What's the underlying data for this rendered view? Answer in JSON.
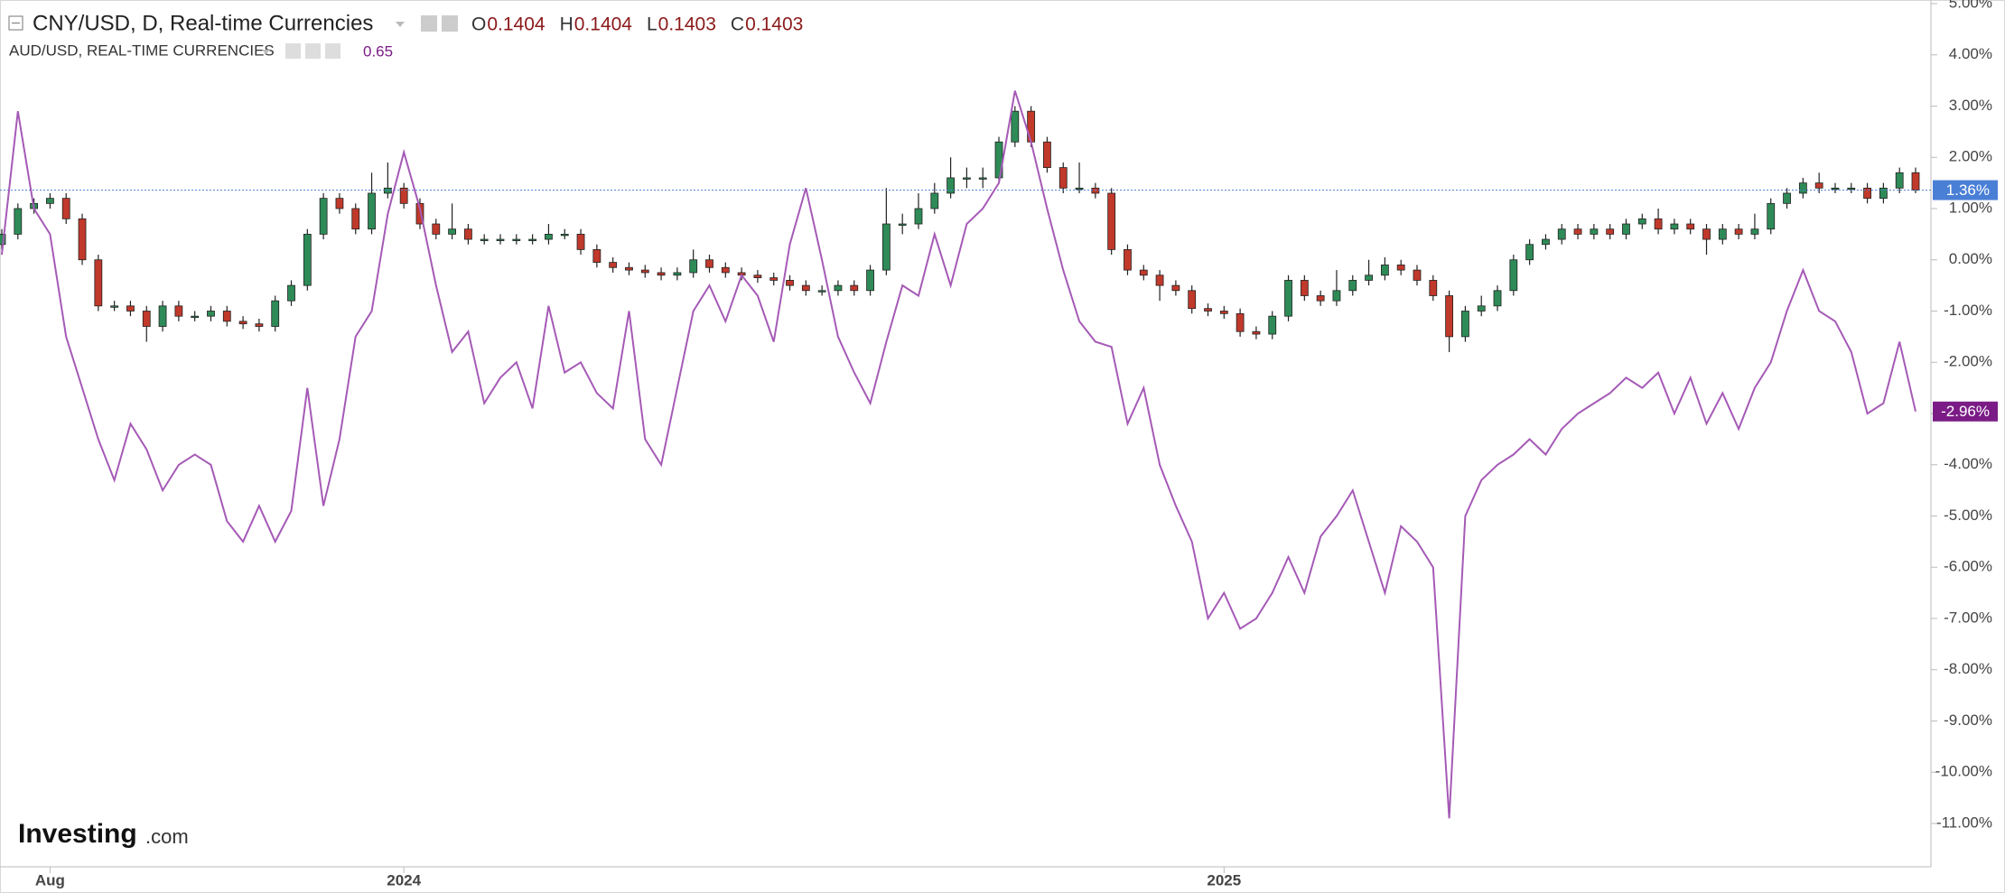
{
  "chart_data": {
    "type": "candlestick",
    "header": {
      "ohlc": [
        {
          "key": "O",
          "value": 0.1404
        },
        {
          "key": "H",
          "value": 0.1404
        },
        {
          "key": "L",
          "value": 0.1403
        },
        {
          "key": "C",
          "value": 0.1403
        }
      ],
      "compare_value": 0.65
    },
    "watermark": [
      "Investing",
      ".com"
    ],
    "ylim": [
      5,
      -11
    ],
    "yticks": [
      {
        "value": 5,
        "label": "5.00%"
      },
      {
        "value": 4,
        "label": "4.00%"
      },
      {
        "value": 3,
        "label": "3.00%"
      },
      {
        "value": 2,
        "label": "2.00%"
      },
      {
        "value": 1,
        "label": "1.00%"
      },
      {
        "value": 0,
        "label": "0.00%"
      },
      {
        "value": -1,
        "label": "-1.00%"
      },
      {
        "value": -2,
        "label": "-2.00%"
      },
      {
        "value": -3,
        "label": "-3.00%"
      },
      {
        "value": -4,
        "label": "-4.00%"
      },
      {
        "value": -5,
        "label": "-5.00%"
      },
      {
        "value": -6,
        "label": "-6.00%"
      },
      {
        "value": -7,
        "label": "-7.00%"
      },
      {
        "value": -8,
        "label": "-8.00%"
      },
      {
        "value": -9,
        "label": "-9.00%"
      },
      {
        "value": -10,
        "label": "-10.00%"
      },
      {
        "value": -11,
        "label": "-11.00%"
      }
    ],
    "categories": [
      null,
      null,
      null,
      "Aug",
      null,
      null,
      null,
      null,
      null,
      null,
      null,
      null,
      null,
      null,
      null,
      null,
      null,
      null,
      null,
      null,
      null,
      null,
      null,
      null,
      null,
      "2024",
      null,
      null,
      null,
      null,
      null,
      null,
      null,
      null,
      null,
      null,
      null,
      null,
      null,
      null,
      null,
      null,
      null,
      null,
      null,
      null,
      null,
      null,
      null,
      null,
      null,
      null,
      null,
      null,
      null,
      null,
      null,
      null,
      null,
      null,
      null,
      null,
      null,
      null,
      null,
      null,
      null,
      null,
      null,
      null,
      null,
      null,
      null,
      null,
      null,
      null,
      "2025",
      null,
      null,
      null,
      null,
      null,
      null,
      null,
      null,
      null,
      null,
      null,
      null,
      null,
      null,
      null,
      null,
      null,
      null,
      null,
      null,
      null,
      null,
      null,
      null,
      null,
      null,
      null,
      null,
      null,
      null,
      null,
      null,
      null,
      null,
      null,
      null,
      null,
      null,
      null,
      null,
      null,
      null,
      null
    ],
    "series": [
      {
        "name": "CNY/USD, D, Real-time Currencies",
        "type": "candlestick",
        "up_color": "#2e8b57",
        "down_color": "#c0392b",
        "last_color": "#4a7fd6",
        "last_label": "1.36%",
        "open": [
          0.3,
          0.5,
          1.0,
          1.1,
          1.2,
          0.8,
          0.0,
          -0.9,
          -0.9,
          -1.0,
          -1.3,
          -0.9,
          -1.1,
          -1.1,
          -1.0,
          -1.2,
          -1.25,
          -1.3,
          -0.8,
          -0.5,
          0.5,
          1.2,
          1.0,
          0.6,
          1.3,
          1.4,
          1.1,
          0.7,
          0.5,
          0.6,
          0.4,
          0.4,
          0.4,
          0.4,
          0.4,
          0.5,
          0.5,
          0.2,
          -0.05,
          -0.15,
          -0.2,
          -0.25,
          -0.3,
          -0.25,
          0.0,
          -0.15,
          -0.25,
          -0.3,
          -0.35,
          -0.4,
          -0.5,
          -0.6,
          -0.6,
          -0.5,
          -0.6,
          -0.2,
          0.7,
          0.7,
          1.0,
          1.3,
          1.6,
          1.6,
          1.6,
          2.3,
          2.9,
          2.3,
          1.8,
          1.4,
          1.4,
          1.3,
          0.2,
          -0.2,
          -0.3,
          -0.5,
          -0.6,
          -0.95,
          -1.0,
          -1.05,
          -1.4,
          -1.45,
          -1.1,
          -0.4,
          -0.7,
          -0.8,
          -0.6,
          -0.4,
          -0.3,
          -0.1,
          -0.2,
          -0.4,
          -0.7,
          -1.5,
          -1.0,
          -0.9,
          -0.6,
          0.0,
          0.3,
          0.4,
          0.6,
          0.5,
          0.6,
          0.5,
          0.7,
          0.8,
          0.6,
          0.7,
          0.6,
          0.4,
          0.6,
          0.5,
          0.6,
          1.1,
          1.3,
          1.5,
          1.4,
          1.4,
          1.4,
          1.2,
          1.4,
          1.7
        ],
        "high": [
          0.6,
          1.1,
          1.2,
          1.3,
          1.3,
          0.9,
          0.1,
          -0.8,
          -0.8,
          -0.9,
          -0.8,
          -0.8,
          -1.0,
          -0.9,
          -0.9,
          -1.1,
          -1.15,
          -0.7,
          -0.4,
          0.6,
          1.3,
          1.3,
          1.1,
          1.7,
          1.9,
          1.5,
          1.2,
          0.8,
          1.1,
          0.7,
          0.5,
          0.5,
          0.5,
          0.5,
          0.7,
          0.6,
          0.6,
          0.3,
          0.05,
          -0.05,
          -0.1,
          -0.15,
          -0.15,
          0.2,
          0.1,
          -0.05,
          -0.15,
          -0.2,
          -0.25,
          -0.3,
          -0.4,
          -0.5,
          -0.4,
          -0.4,
          -0.1,
          1.4,
          0.9,
          1.3,
          1.5,
          2.0,
          1.8,
          1.8,
          2.4,
          3.0,
          3.0,
          2.4,
          1.9,
          1.9,
          1.5,
          1.4,
          0.3,
          -0.1,
          -0.2,
          -0.4,
          -0.5,
          -0.85,
          -0.9,
          -0.95,
          -1.3,
          -1.0,
          -0.3,
          -0.3,
          -0.6,
          -0.2,
          -0.3,
          0.0,
          0.05,
          0.0,
          -0.1,
          -0.3,
          -0.6,
          -0.9,
          -0.7,
          -0.5,
          0.1,
          0.4,
          0.5,
          0.7,
          0.7,
          0.7,
          0.7,
          0.8,
          0.9,
          1.0,
          0.8,
          0.8,
          0.7,
          0.7,
          0.7,
          0.9,
          1.2,
          1.4,
          1.6,
          1.7,
          1.5,
          1.5,
          1.5,
          1.5,
          1.8,
          1.8
        ],
        "low": [
          0.2,
          0.4,
          0.9,
          1.0,
          0.7,
          -0.1,
          -1.0,
          -1.0,
          -1.1,
          -1.6,
          -1.4,
          -1.2,
          -1.2,
          -1.2,
          -1.3,
          -1.35,
          -1.4,
          -1.4,
          -0.9,
          -0.6,
          0.4,
          0.9,
          0.5,
          0.5,
          1.2,
          1.0,
          0.6,
          0.4,
          0.4,
          0.3,
          0.3,
          0.3,
          0.3,
          0.3,
          0.3,
          0.4,
          0.1,
          -0.15,
          -0.25,
          -0.3,
          -0.35,
          -0.4,
          -0.4,
          -0.35,
          -0.25,
          -0.35,
          -0.4,
          -0.45,
          -0.5,
          -0.6,
          -0.7,
          -0.7,
          -0.7,
          -0.7,
          -0.7,
          -0.3,
          0.5,
          0.6,
          0.9,
          1.2,
          1.4,
          1.4,
          1.5,
          2.2,
          2.2,
          1.7,
          1.3,
          1.3,
          1.2,
          0.1,
          -0.3,
          -0.4,
          -0.8,
          -0.7,
          -1.05,
          -1.1,
          -1.15,
          -1.5,
          -1.55,
          -1.55,
          -1.2,
          -0.8,
          -0.9,
          -0.9,
          -0.7,
          -0.5,
          -0.4,
          -0.3,
          -0.5,
          -0.8,
          -1.8,
          -1.6,
          -1.1,
          -1.0,
          -0.7,
          -0.1,
          0.2,
          0.3,
          0.4,
          0.4,
          0.4,
          0.4,
          0.6,
          0.5,
          0.5,
          0.5,
          0.1,
          0.3,
          0.4,
          0.4,
          0.5,
          1.0,
          1.2,
          1.3,
          1.3,
          1.3,
          1.1,
          1.1,
          1.3,
          1.3
        ],
        "close": [
          0.5,
          1.0,
          1.1,
          1.2,
          0.8,
          0.0,
          -0.9,
          -0.9,
          -1.0,
          -1.3,
          -0.9,
          -1.1,
          -1.1,
          -1.0,
          -1.2,
          -1.25,
          -1.3,
          -0.8,
          -0.5,
          0.5,
          1.2,
          1.0,
          0.6,
          1.3,
          1.4,
          1.1,
          0.7,
          0.5,
          0.6,
          0.4,
          0.4,
          0.4,
          0.4,
          0.4,
          0.5,
          0.5,
          0.2,
          -0.05,
          -0.15,
          -0.2,
          -0.25,
          -0.3,
          -0.25,
          0.0,
          -0.15,
          -0.25,
          -0.3,
          -0.35,
          -0.4,
          -0.5,
          -0.6,
          -0.6,
          -0.5,
          -0.6,
          -0.2,
          0.7,
          0.7,
          1.0,
          1.3,
          1.6,
          1.6,
          1.6,
          2.3,
          2.9,
          2.3,
          1.8,
          1.4,
          1.4,
          1.3,
          0.2,
          -0.2,
          -0.3,
          -0.5,
          -0.6,
          -0.95,
          -1.0,
          -1.05,
          -1.4,
          -1.45,
          -1.1,
          -0.4,
          -0.7,
          -0.8,
          -0.6,
          -0.4,
          -0.3,
          -0.1,
          -0.2,
          -0.4,
          -0.7,
          -1.5,
          -1.0,
          -0.9,
          -0.6,
          0.0,
          0.3,
          0.4,
          0.6,
          0.5,
          0.6,
          0.5,
          0.7,
          0.8,
          0.6,
          0.7,
          0.6,
          0.4,
          0.6,
          0.5,
          0.6,
          1.1,
          1.3,
          1.5,
          1.4,
          1.4,
          1.4,
          1.2,
          1.4,
          1.7,
          1.36
        ]
      },
      {
        "name": "AUD/USD, REAL-TIME CURRENCIES",
        "type": "line",
        "color": "#a55ab6",
        "last_color": "#7b1c86",
        "last_label": "-2.96%",
        "values": [
          0.1,
          2.9,
          1.0,
          0.5,
          -1.5,
          -2.5,
          -3.5,
          -4.3,
          -3.2,
          -3.7,
          -4.5,
          -4.0,
          -3.8,
          -4.0,
          -5.1,
          -5.5,
          -4.8,
          -5.5,
          -4.9,
          -2.5,
          -4.8,
          -3.5,
          -1.5,
          -1.0,
          0.9,
          2.1,
          1.0,
          -0.5,
          -1.8,
          -1.4,
          -2.8,
          -2.3,
          -2.0,
          -2.9,
          -0.9,
          -2.2,
          -2.0,
          -2.6,
          -2.9,
          -1.0,
          -3.5,
          -4.0,
          -2.5,
          -1.0,
          -0.5,
          -1.2,
          -0.3,
          -0.7,
          -1.6,
          0.3,
          1.4,
          0.0,
          -1.5,
          -2.2,
          -2.8,
          -1.6,
          -0.5,
          -0.7,
          0.5,
          -0.5,
          0.7,
          1.0,
          1.5,
          3.3,
          2.3,
          1.0,
          -0.2,
          -1.2,
          -1.6,
          -1.7,
          -3.2,
          -2.5,
          -4.0,
          -4.8,
          -5.5,
          -7.0,
          -6.5,
          -7.2,
          -7.0,
          -6.5,
          -5.8,
          -6.5,
          -5.4,
          -5.0,
          -4.5,
          -5.5,
          -6.5,
          -5.2,
          -5.5,
          -6.0,
          -10.9,
          -5.0,
          -4.3,
          -4.0,
          -3.8,
          -3.5,
          -3.8,
          -3.3,
          -3.0,
          -2.8,
          -2.6,
          -2.3,
          -2.5,
          -2.2,
          -3.0,
          -2.3,
          -3.2,
          -2.6,
          -3.3,
          -2.5,
          -2.0,
          -1.0,
          -0.2,
          -1.0,
          -1.2,
          -1.8,
          -3.0,
          -2.8,
          -1.6,
          -2.96
        ]
      }
    ]
  }
}
